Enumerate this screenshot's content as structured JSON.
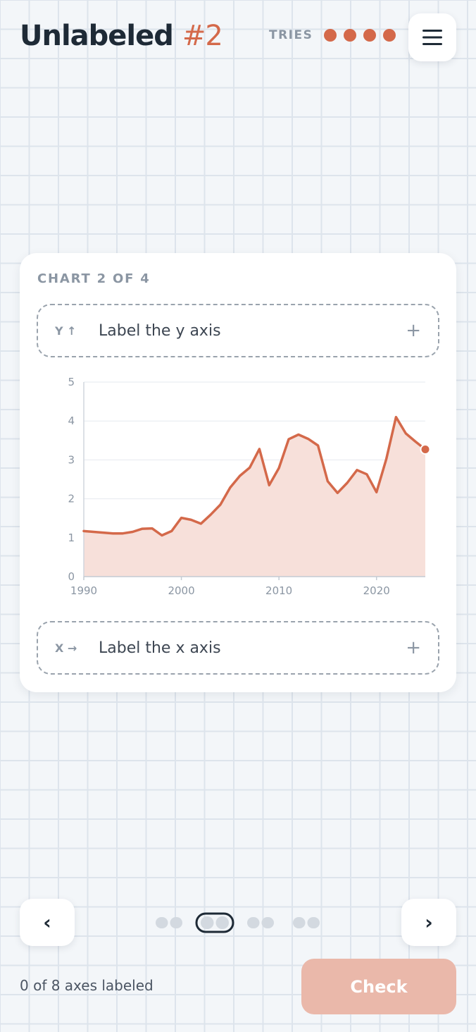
{
  "header": {
    "title": "Unlabeled",
    "number": "#2",
    "tries_label": "TRIES",
    "tries_remaining": 4
  },
  "card": {
    "label": "CHART 2 OF 4",
    "y_slot": {
      "tag": "Y ↑",
      "text": "Label the y axis",
      "plus": "+"
    },
    "x_slot": {
      "tag": "X →",
      "text": "Label the x axis",
      "plus": "+"
    }
  },
  "chart_data": {
    "type": "area",
    "x": [
      1990,
      1991,
      1992,
      1993,
      1994,
      1995,
      1996,
      1997,
      1998,
      1999,
      2000,
      2001,
      2002,
      2003,
      2004,
      2005,
      2006,
      2007,
      2008,
      2009,
      2010,
      2011,
      2012,
      2013,
      2014,
      2015,
      2016,
      2017,
      2018,
      2019,
      2020,
      2021,
      2022,
      2023,
      2024,
      2025
    ],
    "values": [
      1.17,
      1.15,
      1.13,
      1.11,
      1.11,
      1.15,
      1.23,
      1.24,
      1.06,
      1.17,
      1.51,
      1.46,
      1.36,
      1.59,
      1.85,
      2.29,
      2.59,
      2.8,
      3.28,
      2.35,
      2.79,
      3.53,
      3.65,
      3.54,
      3.37,
      2.45,
      2.15,
      2.41,
      2.74,
      2.63,
      2.17,
      3.02,
      4.1,
      3.68,
      3.47,
      3.27
    ],
    "xticks": [
      "1990",
      "2000",
      "2010",
      "2020"
    ],
    "yticks": [
      "0",
      "1",
      "2",
      "3",
      "4",
      "5"
    ],
    "xlim": [
      1990,
      2025
    ],
    "ylim": [
      0,
      5
    ],
    "grid": true,
    "color": "#d4694a",
    "fill": "#f7e0da"
  },
  "nav": {
    "prev": "‹",
    "next": "›",
    "total_charts": 4,
    "current_chart": 2
  },
  "footer": {
    "progress": "0 of 8 axes labeled",
    "check": "Check"
  }
}
